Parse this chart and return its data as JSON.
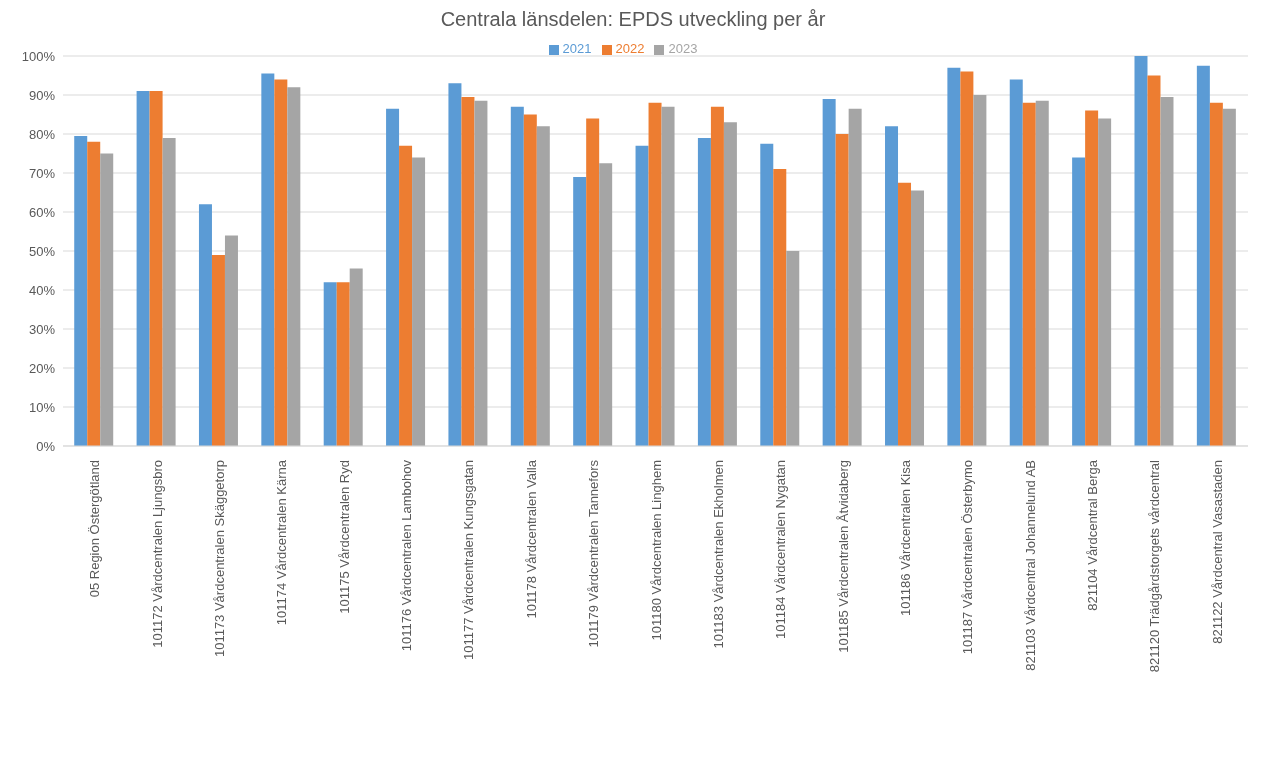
{
  "chart_data": {
    "type": "bar",
    "title": "Centrala länsdelen: EPDS utveckling per år",
    "categories": [
      "05 Region Östergötland",
      "101172 Vårdcentralen Ljungsbro",
      "101173 Vårdcentralen Skäggetorp",
      "101174 Vårdcentralen Kärna",
      "101175 Vårdcentralen Ryd",
      "101176 Vårdcentralen Lambohov",
      "101177 Vårdcentralen Kungsgatan",
      "101178 Vårdcentralen Valla",
      "101179 Vårdcentralen Tannefors",
      "101180 Vårdcentralen Linghem",
      "101183 Vårdcentralen Ekholmen",
      "101184 Vårdcentralen Nygatan",
      "101185 Vårdcentralen Åtvidaberg",
      "101186 Vårdcentralen Kisa",
      "101187 Vårdcentralen Österbymo",
      "821103 Vårdcentral Johannelund AB",
      "821104 Vårdcentral Berga",
      "821120 Trädgårdstorgets vårdcentral",
      "821122 Vårdcentral Vasastaden"
    ],
    "series": [
      {
        "name": "2021",
        "color": "#5b9bd5",
        "values": [
          79.5,
          91,
          62,
          95.5,
          42,
          86.5,
          93,
          87,
          69,
          77,
          79,
          77.5,
          89,
          82,
          97,
          94,
          74,
          100,
          97.5
        ]
      },
      {
        "name": "2022",
        "color": "#ed7d31",
        "values": [
          78,
          91,
          49,
          94,
          42,
          77,
          89.5,
          85,
          84,
          88,
          87,
          71,
          80,
          67.5,
          96,
          88,
          86,
          95,
          88
        ]
      },
      {
        "name": "2023",
        "color": "#a5a5a5",
        "values": [
          75,
          79,
          54,
          92,
          45.5,
          74,
          88.5,
          82,
          72.5,
          87,
          83,
          50,
          86.5,
          65.5,
          90,
          88.5,
          84,
          89.5,
          86.5
        ]
      }
    ],
    "ylim": [
      0,
      100
    ],
    "yticks": [
      {
        "value": 0,
        "label": "0%"
      },
      {
        "value": 10,
        "label": "10%"
      },
      {
        "value": 20,
        "label": "20%"
      },
      {
        "value": 30,
        "label": "30%"
      },
      {
        "value": 40,
        "label": "40%"
      },
      {
        "value": 50,
        "label": "50%"
      },
      {
        "value": 60,
        "label": "60%"
      },
      {
        "value": 70,
        "label": "70%"
      },
      {
        "value": 80,
        "label": "80%"
      },
      {
        "value": 90,
        "label": "90%"
      },
      {
        "value": 100,
        "label": "100%"
      }
    ],
    "grid": "y",
    "legend": "top"
  }
}
